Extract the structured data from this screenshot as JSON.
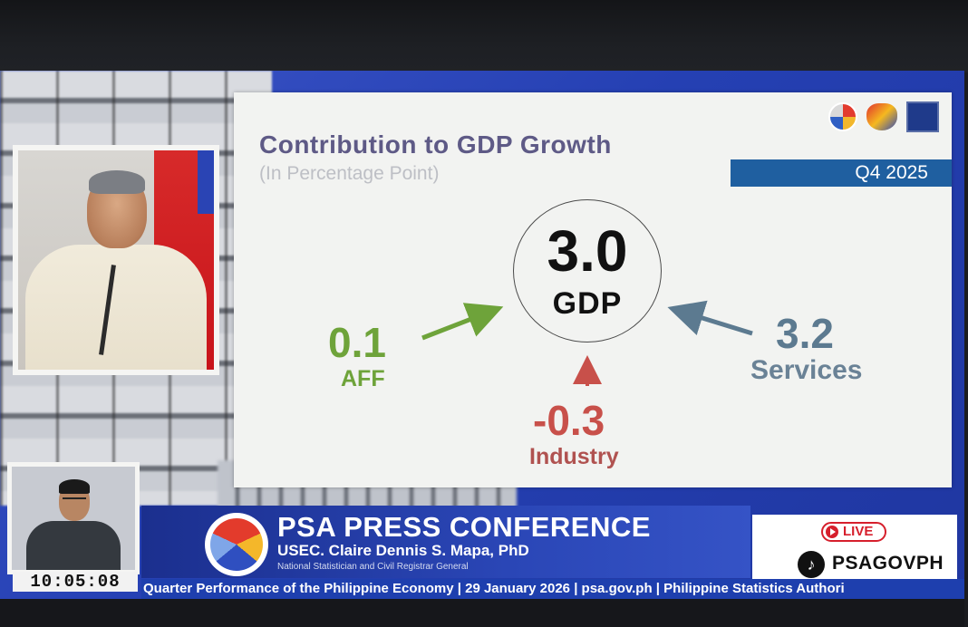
{
  "slide": {
    "title": "Contribution to GDP Growth",
    "subtitle": "(In Percentage Point)",
    "period": "Q4 2025",
    "logos": [
      "psa-logo-icon",
      "bagong-pilipinas-icon",
      "sdg-logo-icon"
    ],
    "gdp": {
      "value": "3.0",
      "label": "GDP"
    },
    "components": [
      {
        "value": "0.1",
        "label": "AFF",
        "color": "#6ea33a"
      },
      {
        "value": "-0.3",
        "label": "Industry",
        "color": "#c8504a"
      },
      {
        "value": "3.2",
        "label": "Services",
        "color": "#5c7a90"
      }
    ]
  },
  "broadcast": {
    "clock": "10:05:08",
    "conference_title": "PSA PRESS CONFERENCE",
    "speaker": "USEC. Claire Dennis S. Mapa, PhD",
    "speaker_role": "National Statistician and Civil Registrar General",
    "live_label": "LIVE",
    "social_handle": "PSAGOVPH",
    "ticker": "Quarter Performance of the Philippine Economy | 29 January 2026 | psa.gov.ph | Philippine Statistics Authori"
  },
  "colors": {
    "accent_blue": "#2540b3",
    "badge_blue": "#1f5fa0",
    "live_red": "#d61f2c"
  }
}
